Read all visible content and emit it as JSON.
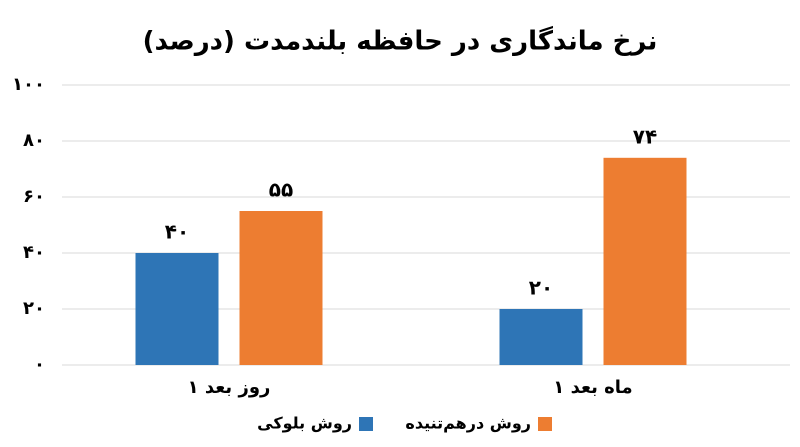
{
  "chart_data": {
    "type": "bar",
    "title": "نرخ ماندگاری در حافظه بلندمدت (درصد)",
    "categories": [
      "۱ روز بعد",
      "۱ ماه بعد"
    ],
    "series": [
      {
        "name": "روش بلوکی",
        "color": "#2e75b6",
        "values": [
          40,
          20
        ],
        "value_labels": [
          "۴۰",
          "۲۰"
        ]
      },
      {
        "name": "روش درهم‌تنیده",
        "color": "#ed7d31",
        "values": [
          55,
          74
        ],
        "value_labels": [
          "۵۵",
          "۷۴"
        ]
      }
    ],
    "ylim": [
      0,
      100
    ],
    "yticks": [
      {
        "value": 0,
        "label": "۰"
      },
      {
        "value": 20,
        "label": "۲۰"
      },
      {
        "value": 40,
        "label": "۴۰"
      },
      {
        "value": 60,
        "label": "۶۰"
      },
      {
        "value": 80,
        "label": "۸۰"
      },
      {
        "value": 100,
        "label": "۱۰۰"
      }
    ],
    "grid": true
  }
}
